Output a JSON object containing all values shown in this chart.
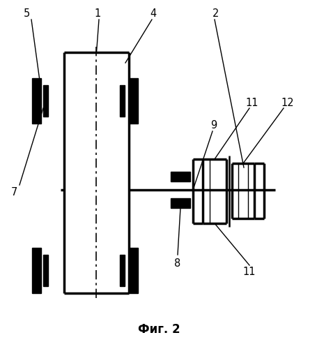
{
  "bg_color": "#ffffff",
  "line_color": "#000000",
  "title": "Фиг. 2",
  "title_fontsize": 12,
  "title_bold": true,
  "fig_width": 4.56,
  "fig_height": 5.0,
  "dpi": 100
}
